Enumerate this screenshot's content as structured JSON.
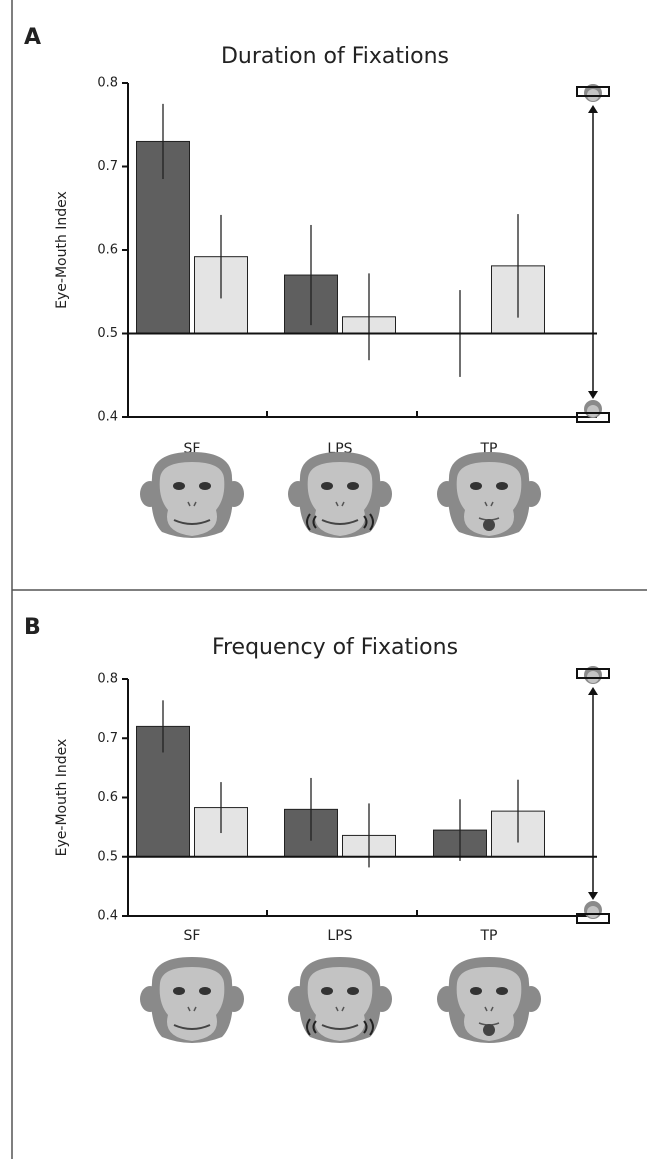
{
  "chart_data": [
    {
      "type": "bar",
      "panel_label": "A",
      "title": "Duration of Fixations",
      "y_label": "Eye-Mouth Index",
      "categories": [
        "SF",
        "LPS",
        "TP"
      ],
      "series": [
        {
          "color": "#5f5f5f",
          "values": [
            0.73,
            0.57,
            0.5
          ],
          "errors": [
            0.045,
            0.06,
            0.052
          ]
        },
        {
          "color": "#e4e4e4",
          "values": [
            0.592,
            0.52,
            0.581
          ],
          "errors": [
            0.05,
            0.052,
            0.062
          ]
        }
      ],
      "baseline": 0.5,
      "ylim": [
        0.4,
        0.8
      ],
      "yticks": [
        0.4,
        0.5,
        0.6,
        0.7,
        0.8
      ]
    },
    {
      "type": "bar",
      "panel_label": "B",
      "title": "Frequency of Fixations",
      "y_label": "Eye-Mouth Index",
      "categories": [
        "SF",
        "LPS",
        "TP"
      ],
      "series": [
        {
          "color": "#5f5f5f",
          "values": [
            0.72,
            0.58,
            0.545
          ],
          "errors": [
            0.044,
            0.053,
            0.052
          ]
        },
        {
          "color": "#e4e4e4",
          "values": [
            0.583,
            0.536,
            0.577
          ],
          "errors": [
            0.043,
            0.054,
            0.053
          ]
        }
      ],
      "baseline": 0.5,
      "ylim": [
        0.4,
        0.8
      ],
      "yticks": [
        0.4,
        0.5,
        0.6,
        0.7,
        0.8
      ]
    }
  ]
}
